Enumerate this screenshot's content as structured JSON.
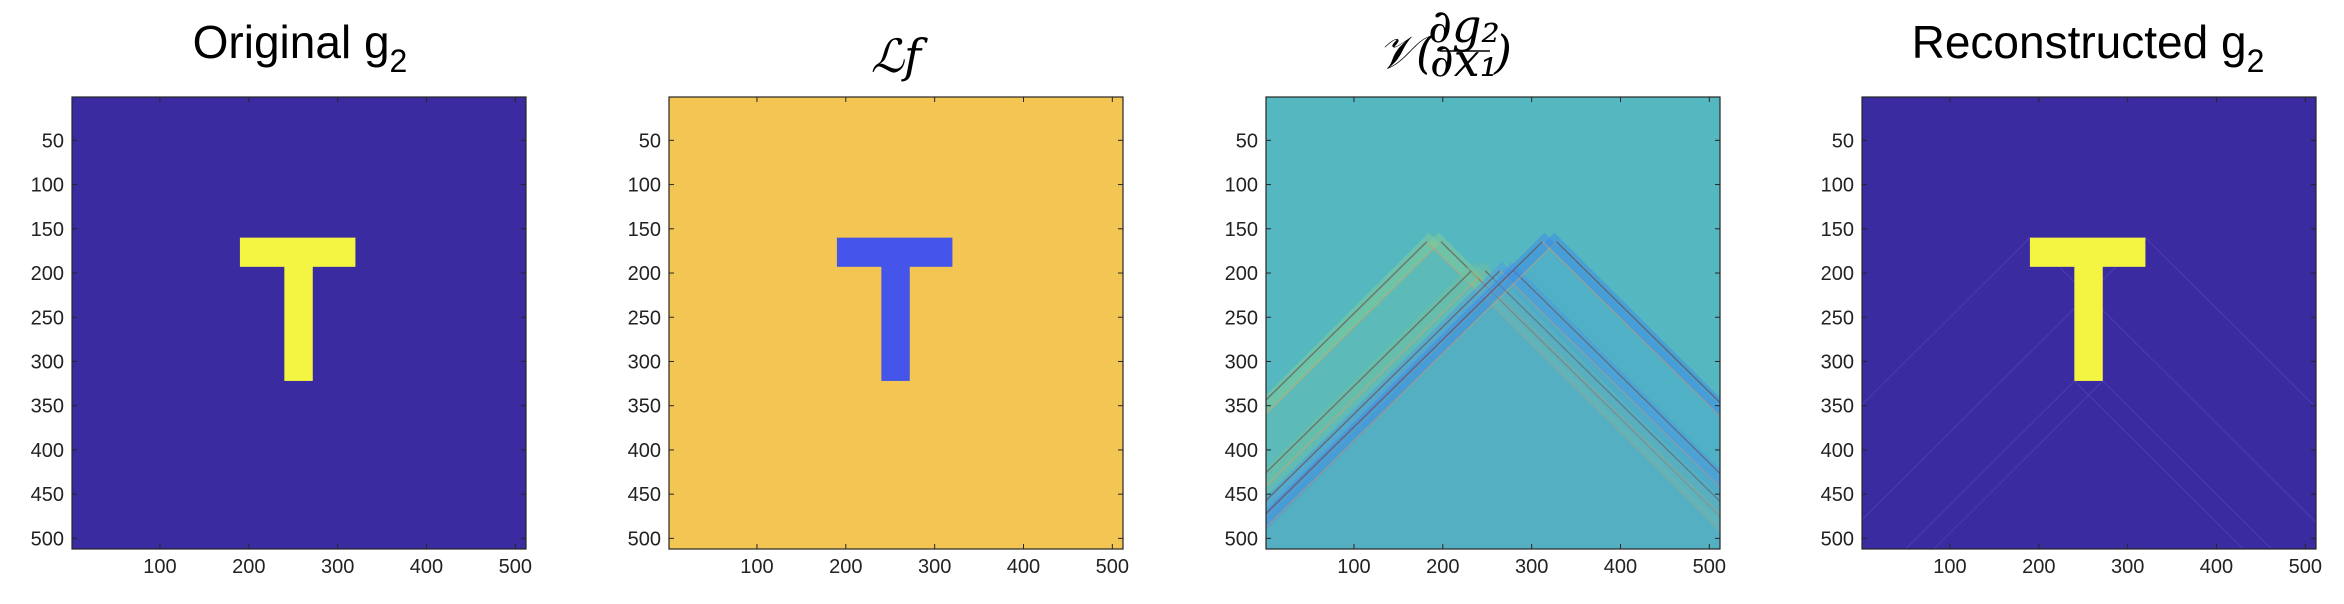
{
  "chart_data": [
    {
      "type": "heatmap",
      "panel": "original",
      "title": "Original g",
      "title_subscript": "2",
      "x_ticks": [
        "100",
        "200",
        "300",
        "400",
        "500"
      ],
      "y_ticks": [
        "50",
        "100",
        "150",
        "200",
        "250",
        "300",
        "350",
        "400",
        "450",
        "500"
      ],
      "xlim": [
        1,
        512
      ],
      "ylim": [
        1,
        512
      ],
      "y_direction": "reversed",
      "background_color": "#3b2ba0",
      "shape": "T",
      "shape_color": "#f4f542",
      "t_bar_x": [
        190,
        320
      ],
      "t_bar_y": [
        160,
        193
      ],
      "t_stem_x": [
        240,
        272
      ],
      "t_stem_y": [
        193,
        322
      ],
      "cone_streaks": false
    },
    {
      "type": "heatmap",
      "panel": "Lf",
      "title": "ℒf",
      "x_ticks": [
        "100",
        "200",
        "300",
        "400",
        "500"
      ],
      "y_ticks": [
        "50",
        "100",
        "150",
        "200",
        "250",
        "300",
        "350",
        "400",
        "450",
        "500"
      ],
      "xlim": [
        1,
        512
      ],
      "ylim": [
        1,
        512
      ],
      "y_direction": "reversed",
      "background_color": "#f3c653",
      "shape": "T",
      "shape_color": "#4655e9",
      "t_bar_x": [
        190,
        320
      ],
      "t_bar_y": [
        160,
        193
      ],
      "t_stem_x": [
        240,
        272
      ],
      "t_stem_y": [
        193,
        322
      ],
      "cone_streaks": false
    },
    {
      "type": "heatmap",
      "panel": "V-derivative",
      "title_prefix": "𝒱(",
      "title_numerator": "∂g₂",
      "title_denominator": "∂x₁",
      "title_suffix": ")",
      "x_ticks": [
        "100",
        "200",
        "300",
        "400",
        "500"
      ],
      "y_ticks": [
        "50",
        "100",
        "150",
        "200",
        "250",
        "300",
        "350",
        "400",
        "450",
        "500"
      ],
      "xlim": [
        1,
        512
      ],
      "ylim": [
        1,
        512
      ],
      "y_direction": "reversed",
      "background_color": "#55b7bf",
      "cone_apexes": [
        [
          190,
          160
        ],
        [
          240,
          193
        ],
        [
          272,
          193
        ],
        [
          320,
          160
        ]
      ],
      "cone_colors": [
        "#7fcc9a",
        "#6fbfa4",
        "#4f9ee0",
        "#3f8ee6"
      ],
      "cone_streaks": true
    },
    {
      "type": "heatmap",
      "panel": "reconstructed",
      "title": "Reconstructed g",
      "title_subscript": "2",
      "x_ticks": [
        "100",
        "200",
        "300",
        "400",
        "500"
      ],
      "y_ticks": [
        "50",
        "100",
        "150",
        "200",
        "250",
        "300",
        "350",
        "400",
        "450",
        "500"
      ],
      "xlim": [
        1,
        512
      ],
      "ylim": [
        1,
        512
      ],
      "y_direction": "reversed",
      "background_color": "#3b2ba0",
      "shape": "T",
      "shape_color": "#f4f542",
      "t_bar_x": [
        190,
        320
      ],
      "t_bar_y": [
        160,
        193
      ],
      "t_stem_x": [
        240,
        272
      ],
      "t_stem_y": [
        193,
        322
      ],
      "cone_streaks": true
    }
  ]
}
